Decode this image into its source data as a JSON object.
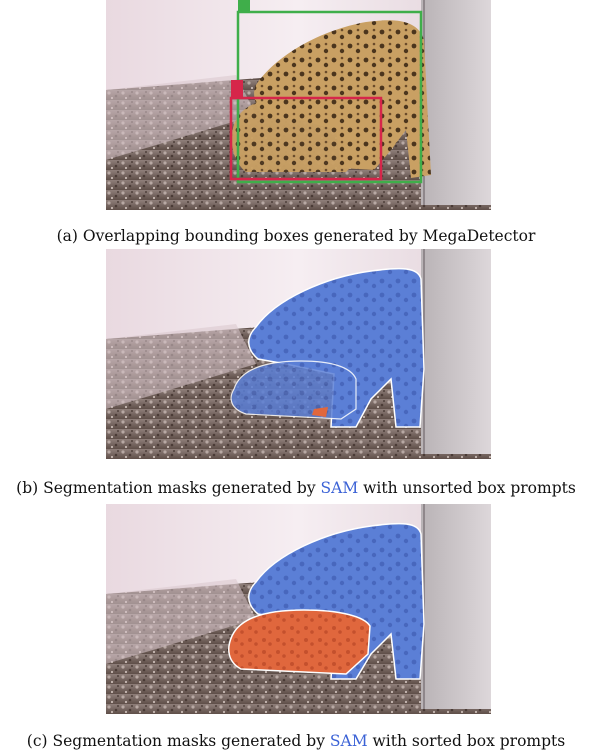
{
  "figure": {
    "panels": [
      {
        "caption_label": "(a)",
        "caption_text": "Overlapping bounding boxes generated by MegaDetector"
      },
      {
        "caption_label": "(b)",
        "caption_pre": "Segmentation masks generated by",
        "caption_link": "SAM",
        "caption_post": "with unsorted box prompts"
      },
      {
        "caption_label": "(c)",
        "caption_pre": "Segmentation masks generated by",
        "caption_link": "SAM",
        "caption_post": "with sorted box prompts"
      }
    ],
    "colors": {
      "adult_box": "#3fae4a",
      "cub_box": "#d6264a",
      "mask_blue": "#5b7fd6",
      "mask_orange": "#e0673d",
      "link": "#3b62d6"
    }
  }
}
